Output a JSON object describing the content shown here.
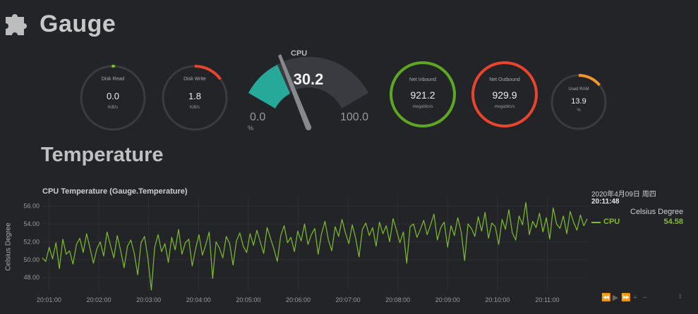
{
  "header": {
    "title": "Gauge",
    "icon": "puzzle-icon"
  },
  "gauges": {
    "disk_read": {
      "label": "Disk Read",
      "value": "0.0",
      "unit": "KiB/s",
      "fraction": 0.0,
      "color": "#7fbe29"
    },
    "disk_write": {
      "label": "Disk Write",
      "value": "1.8",
      "unit": "KiB/s",
      "fraction": 0.18,
      "color": "#e8452c"
    },
    "net_inbound": {
      "label": "Net Inbound",
      "value": "921.2",
      "unit": "megabits/s",
      "fraction": 1.0,
      "color": "#5ea821"
    },
    "net_outbound": {
      "label": "Net Outbound",
      "value": "929.9",
      "unit": "megabits/s",
      "fraction": 1.0,
      "color": "#e8452c"
    },
    "used_ram": {
      "label": "Used RAM",
      "value": "13.9",
      "unit": "%",
      "fraction": 0.139,
      "color": "#f0962c"
    }
  },
  "cpu_gauge": {
    "title": "CPU",
    "value": "30.2",
    "value_num": 30.2,
    "min": "0.0",
    "max": "100.0",
    "unit": "%",
    "color": "#27a999"
  },
  "section": {
    "title": "Temperature"
  },
  "chart": {
    "title": "CPU Temperature (Gauge.Temperature)",
    "y_label": "Celsius Degree"
  },
  "legend": {
    "date": "2020年4月09日 周四",
    "time": "20:11:48",
    "series_name": "Celsius Degree",
    "series_label": "CPU",
    "series_value": "54.58",
    "series_color": "#7fbe29"
  },
  "controls": {
    "rewind": "⏪",
    "play": "▶",
    "forward": "⏩",
    "zoom_in": "+",
    "zoom_out": "−",
    "up_down": "⇕"
  },
  "chart_data": {
    "type": "line",
    "title": "CPU Temperature (Gauge.Temperature)",
    "ylabel": "Celsius Degree",
    "ylim": [
      46.6,
      57.0
    ],
    "y_ticks": [
      "56.00",
      "54.00",
      "52.00",
      "50.00",
      "48.00"
    ],
    "x_ticks": [
      "20:01:00",
      "20:02:00",
      "20:03:00",
      "20:04:00",
      "20:05:00",
      "20:06:00",
      "20:07:00",
      "20:08:00",
      "20:09:00",
      "20:10:00",
      "20:11:00"
    ],
    "series": [
      {
        "name": "CPU",
        "color": "#7fbe29",
        "x_range": [
          "20:00:52",
          "20:11:48"
        ],
        "values": [
          50.2,
          49.8,
          51.4,
          50.1,
          51.9,
          49.0,
          52.3,
          50.6,
          51.0,
          49.5,
          51.7,
          52.4,
          50.8,
          52.9,
          51.3,
          49.6,
          51.2,
          52.0,
          50.4,
          53.1,
          51.6,
          50.2,
          52.7,
          51.0,
          49.1,
          51.5,
          52.2,
          50.7,
          48.3,
          51.9,
          52.6,
          50.1,
          46.6,
          51.4,
          52.8,
          50.9,
          51.8,
          49.7,
          52.5,
          51.1,
          53.4,
          50.6,
          51.9,
          52.3,
          49.3,
          51.2,
          52.8,
          50.5,
          51.7,
          53.1,
          47.9,
          52.0,
          51.3,
          50.2,
          52.6,
          51.8,
          49.4,
          52.1,
          53.0,
          51.5,
          50.8,
          52.9,
          51.6,
          53.3,
          52.0,
          50.7,
          53.6,
          52.4,
          51.2,
          49.8,
          52.7,
          53.8,
          51.9,
          52.5,
          50.9,
          53.2,
          52.1,
          54.0,
          51.7,
          52.8,
          53.5,
          50.6,
          52.9,
          54.3,
          52.2,
          51.0,
          53.7,
          52.6,
          54.5,
          53.0,
          51.8,
          53.9,
          52.4,
          50.3,
          53.4,
          54.1,
          52.7,
          53.6,
          51.5,
          54.2,
          52.9,
          53.8,
          52.0,
          54.6,
          53.3,
          51.9,
          53.1,
          49.6,
          53.7,
          54.0,
          52.5,
          53.4,
          54.4,
          52.8,
          53.9,
          55.1,
          52.2,
          53.6,
          54.2,
          51.4,
          53.8,
          52.7,
          54.7,
          53.1,
          49.9,
          54.0,
          53.5,
          52.6,
          54.8,
          53.2,
          55.3,
          52.4,
          54.1,
          53.7,
          51.7,
          54.5,
          53.4,
          55.6,
          53.0,
          52.2,
          54.9,
          53.9,
          56.4,
          52.8,
          54.3,
          53.6,
          55.2,
          53.1,
          54.7,
          52.3,
          55.8,
          54.0,
          53.5,
          54.9,
          52.9,
          55.4,
          54.2,
          53.3,
          55.0,
          53.8,
          54.58
        ]
      }
    ]
  }
}
